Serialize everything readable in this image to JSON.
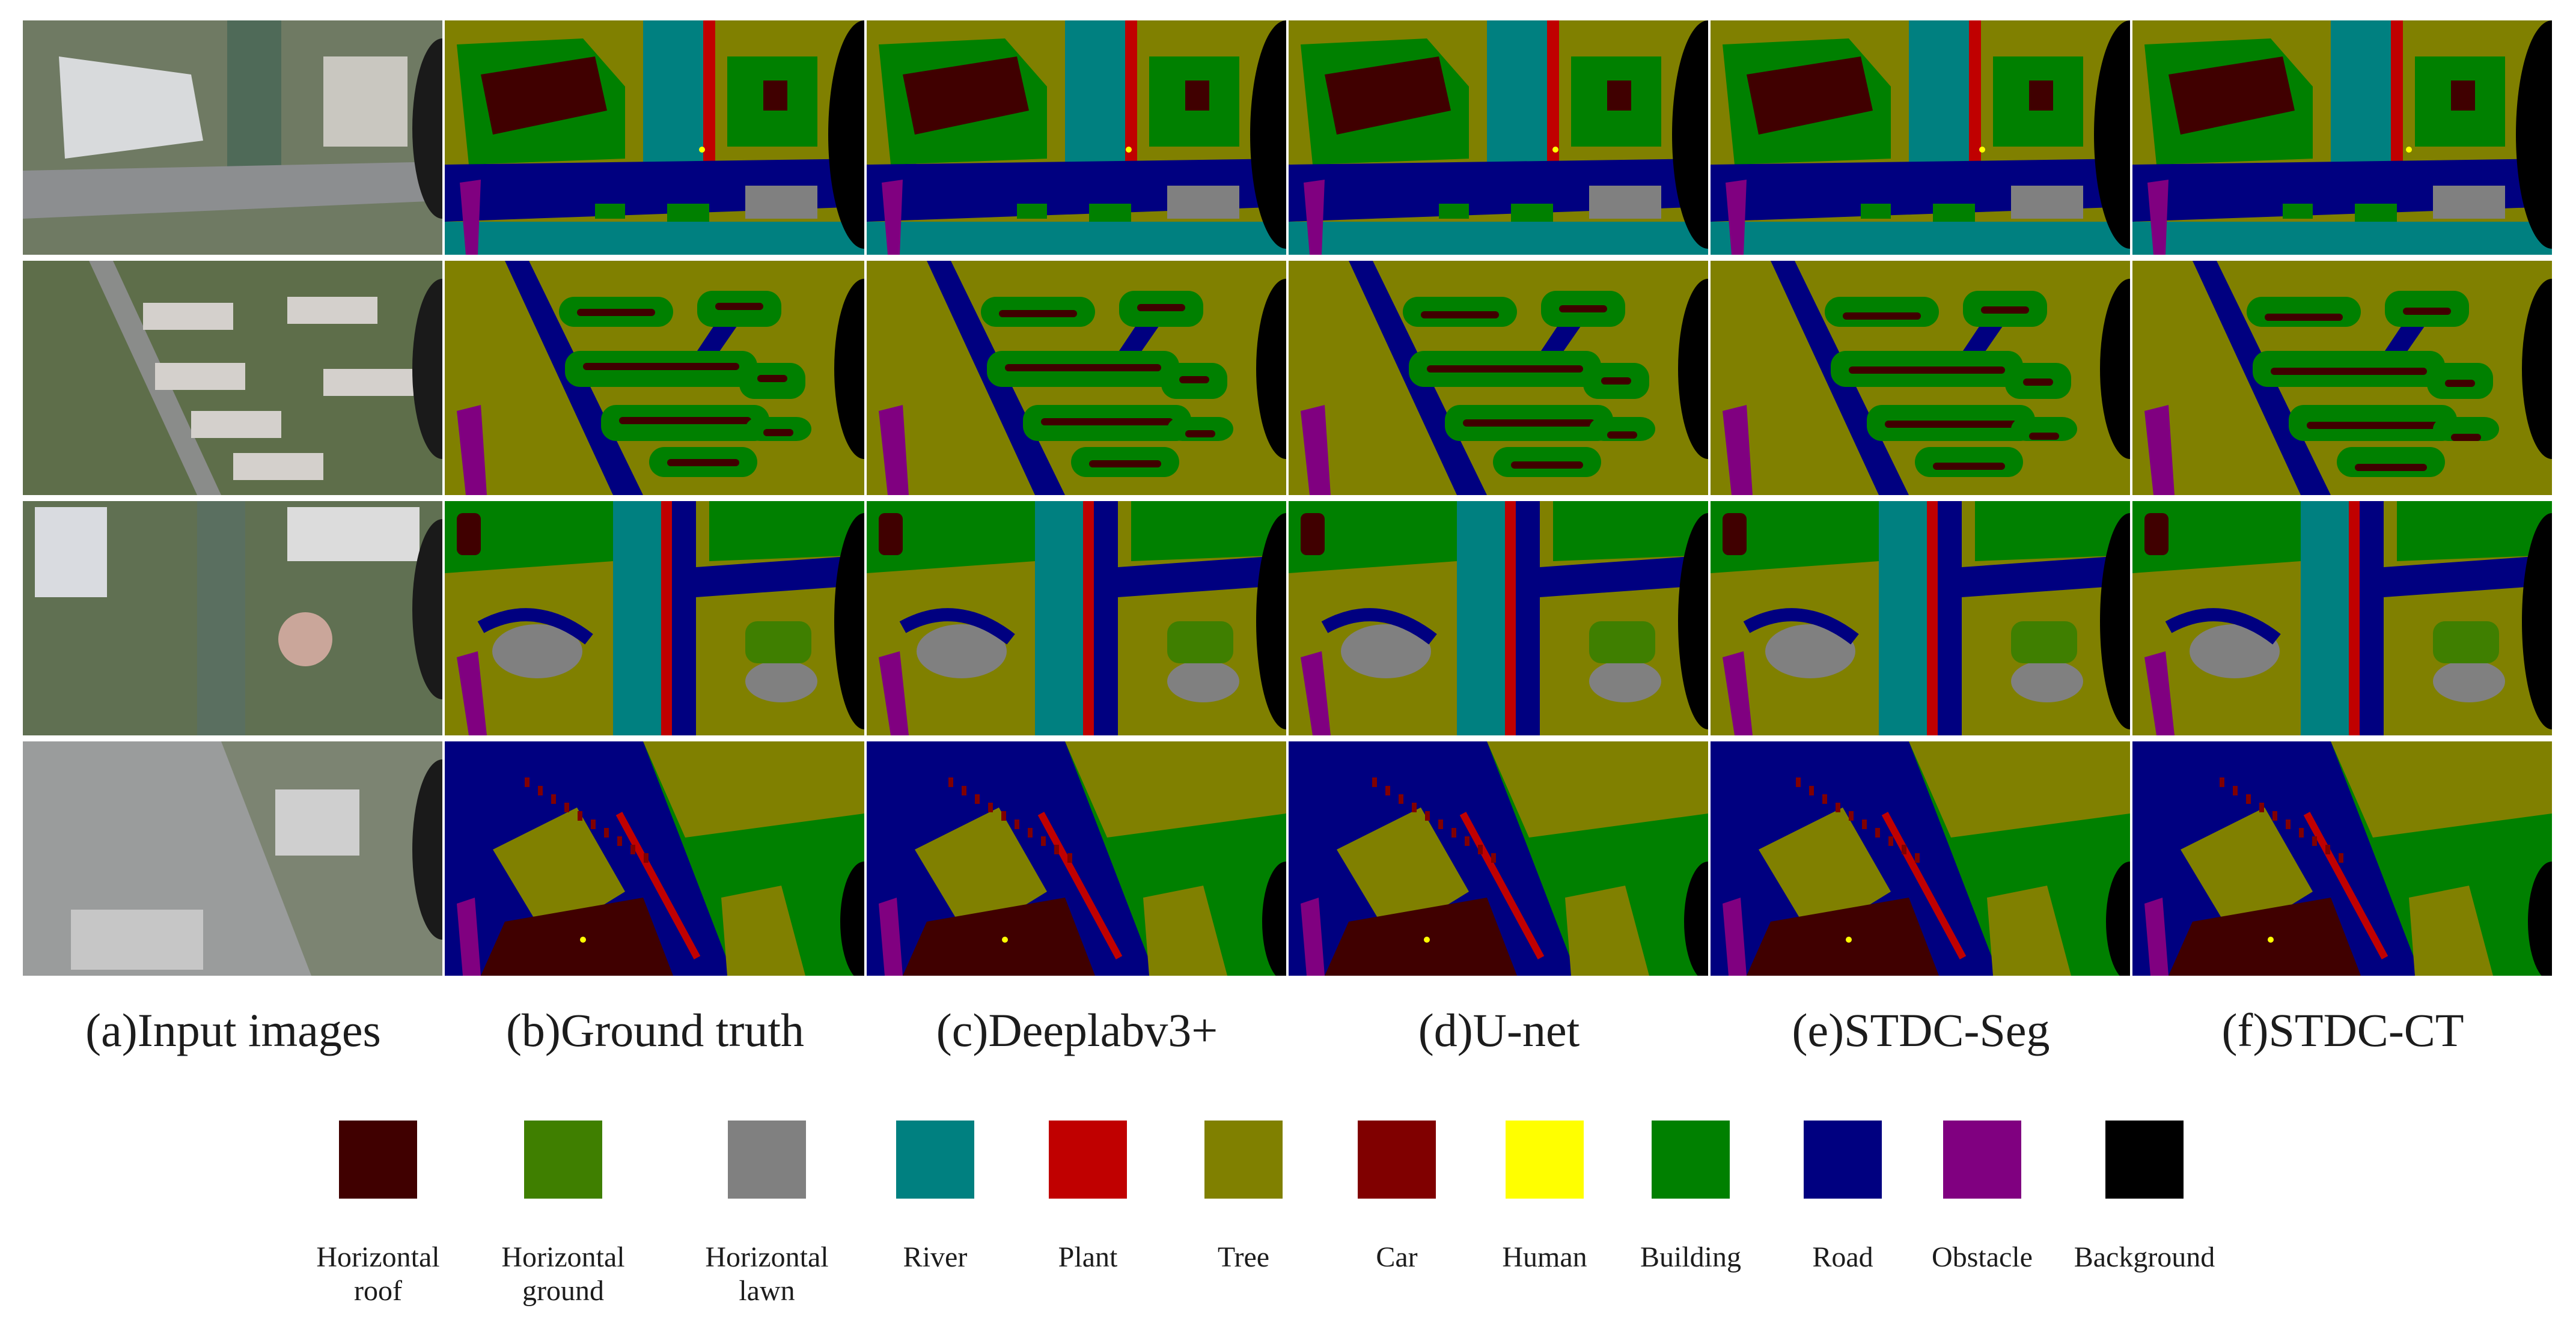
{
  "columns": [
    "(a)Input images",
    "(b)Ground truth",
    "(c)Deeplabv3+",
    "(d)U-net",
    "(e)STDC-Seg",
    "(f)STDC-CT"
  ],
  "legend": [
    {
      "label": "Horizontal roof",
      "color": "#400000"
    },
    {
      "label": "Horizontal ground",
      "color": "#3f7f00"
    },
    {
      "label": "Horizontal lawn",
      "color": "#808080"
    },
    {
      "label": "River",
      "color": "#008080"
    },
    {
      "label": "Plant",
      "color": "#c00000"
    },
    {
      "label": "Tree",
      "color": "#808000"
    },
    {
      "label": "Car",
      "color": "#800000"
    },
    {
      "label": "Human",
      "color": "#ffff00"
    },
    {
      "label": "Building",
      "color": "#008000"
    },
    {
      "label": "Road",
      "color": "#000080"
    },
    {
      "label": "Obstacle",
      "color": "#800080"
    },
    {
      "label": "Background",
      "color": "#000000"
    }
  ]
}
